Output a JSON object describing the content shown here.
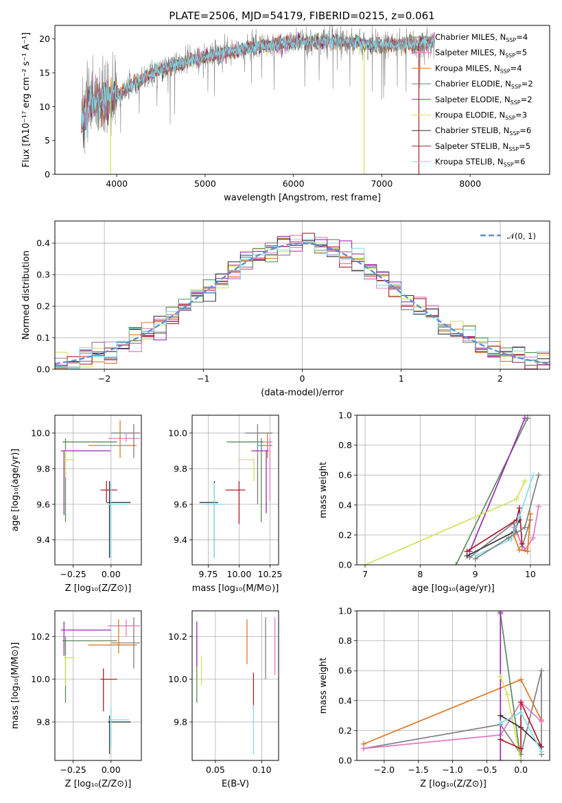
{
  "title": "PLATE=2506, MJD=54179, FIBERID=0215, z=0.061",
  "models": [
    {
      "name": "Chabrier MILES",
      "nssp": "4",
      "color": "#7f7f7f"
    },
    {
      "name": "Salpeter MILES",
      "nssp": "5",
      "color": "#e377c2"
    },
    {
      "name": "Kroupa MILES",
      "nssp": "4",
      "color": "#dd7722"
    },
    {
      "name": "Chabrier ELODIE",
      "nssp": "2",
      "color": "#5a8a5a"
    },
    {
      "name": "Salpeter ELODIE",
      "nssp": "2",
      "color": "#9b27b0"
    },
    {
      "name": "Kroupa ELODIE",
      "nssp": "3",
      "color": "#d4e157"
    },
    {
      "name": "Chabrier STELIB",
      "nssp": "6",
      "color": "#333333"
    },
    {
      "name": "Salpeter STELIB",
      "nssp": "5",
      "color": "#b2182b"
    },
    {
      "name": "Kroupa STELIB",
      "nssp": "6",
      "color": "#80deea"
    }
  ],
  "chart_data": [
    {
      "id": "spectrum",
      "type": "line",
      "xlabel": "wavelength [Angstrom, rest frame]",
      "ylabel": "Flux [fλ10⁻¹⁷ erg cm⁻² s⁻¹ A⁻¹]",
      "xlim": [
        3300,
        8900
      ],
      "ylim": [
        0,
        22
      ],
      "xticks": [
        4000,
        5000,
        6000,
        7000,
        8000
      ],
      "yticks": [
        0,
        5,
        10,
        15,
        20
      ],
      "legend_loc": "right",
      "continuum": [
        [
          3600,
          8
        ],
        [
          3700,
          10.5
        ],
        [
          3850,
          11
        ],
        [
          4000,
          11.5
        ],
        [
          4100,
          12.5
        ],
        [
          4200,
          13.5
        ],
        [
          4350,
          14.5
        ],
        [
          4500,
          15.5
        ],
        [
          4700,
          16.3
        ],
        [
          4900,
          17
        ],
        [
          5100,
          17.6
        ],
        [
          5300,
          18.2
        ],
        [
          5500,
          18.7
        ],
        [
          5700,
          19.1
        ],
        [
          5900,
          19.3
        ],
        [
          6100,
          19.5
        ],
        [
          6300,
          19.6
        ],
        [
          6500,
          19.6
        ],
        [
          6700,
          19.4
        ],
        [
          6900,
          19.2
        ],
        [
          7100,
          19.1
        ],
        [
          7300,
          19.2
        ],
        [
          7500,
          19.5
        ],
        [
          7600,
          19.7
        ]
      ],
      "dips": [
        {
          "x": 3930,
          "y": 0
        },
        {
          "x": 6800,
          "y": 0
        },
        {
          "x": 7420,
          "y": 0
        }
      ]
    },
    {
      "id": "residuals",
      "type": "step",
      "xlabel": "(data-model)/error",
      "ylabel": "Normed distribution",
      "xlim": [
        -2.5,
        2.5
      ],
      "ylim": [
        0,
        0.47
      ],
      "xticks": [
        -2,
        -1,
        0,
        1,
        2
      ],
      "yticks": [
        0.0,
        0.1,
        0.2,
        0.3,
        0.4
      ],
      "reference_label": "𝒩(0, 1)",
      "bin_width": 0.125
    },
    {
      "id": "age-vs-Z",
      "type": "errorbar",
      "xlabel": "Z [log₁₀(Z/Z⊙)]",
      "ylabel": "age  [log₁₀(age/yr)]",
      "xlim": [
        -0.37,
        0.2
      ],
      "ylim": [
        9.26,
        10.1
      ],
      "xticks": [
        -0.25,
        0.0
      ],
      "yticks": [
        9.4,
        9.6,
        9.8,
        10.0
      ],
      "points": [
        {
          "model": 0,
          "x": -0.01,
          "y": 9.61,
          "xlo": -0.03,
          "xhi": 0.01,
          "ylo": 9.3,
          "yhi": 9.73
        },
        {
          "model": 1,
          "x": 0.1,
          "y": 9.97,
          "xlo": -0.02,
          "xhi": 0.19,
          "ylo": 9.95,
          "yhi": 10.0
        },
        {
          "model": 2,
          "x": 0.06,
          "y": 9.93,
          "xlo": -0.15,
          "xhi": 0.17,
          "ylo": 9.86,
          "yhi": 10.07
        },
        {
          "model": 3,
          "x": -0.3,
          "y": 9.95,
          "xlo": -0.32,
          "xhi": 0.04,
          "ylo": 9.5,
          "yhi": 9.97
        },
        {
          "model": 4,
          "x": -0.31,
          "y": 9.9,
          "xlo": -0.33,
          "xhi": 0.0,
          "ylo": 9.54,
          "yhi": 9.9
        },
        {
          "model": 5,
          "x": -0.3,
          "y": 9.85,
          "xlo": -0.31,
          "xhi": -0.24,
          "ylo": 9.75,
          "yhi": 9.9
        },
        {
          "model": 6,
          "x": -0.01,
          "y": 9.61,
          "xlo": -0.02,
          "xhi": 0.13,
          "ylo": 9.3,
          "yhi": 9.73
        },
        {
          "model": 7,
          "x": -0.03,
          "y": 9.68,
          "xlo": -0.07,
          "xhi": 0.04,
          "ylo": 9.61,
          "yhi": 9.73
        },
        {
          "model": 8,
          "x": 0.0,
          "y": 9.6,
          "xlo": -0.02,
          "xhi": 0.12,
          "ylo": 9.3,
          "yhi": 9.72
        },
        {
          "model": 0,
          "x": 0.15,
          "y": 10.0,
          "xlo": 0.0,
          "xhi": 0.19,
          "ylo": 9.86,
          "yhi": 10.05
        }
      ]
    },
    {
      "id": "age-vs-mass",
      "type": "errorbar",
      "xlabel": "mass [log₁₀(M/M⊙)]",
      "ylabel": "",
      "xlim": [
        9.62,
        10.32
      ],
      "ylim": [
        9.26,
        10.1
      ],
      "xticks": [
        9.75,
        10.0,
        10.25
      ],
      "yticks": [
        9.4,
        9.6,
        9.8,
        10.0
      ],
      "points": [
        {
          "model": 0,
          "x": 10.15,
          "y": 10.0,
          "xlo": 10.05,
          "xhi": 10.27,
          "ylo": 9.6,
          "yhi": 10.05
        },
        {
          "model": 1,
          "x": 10.25,
          "y": 9.95,
          "xlo": 10.2,
          "xhi": 10.27,
          "ylo": 9.62,
          "yhi": 9.97
        },
        {
          "model": 2,
          "x": 10.23,
          "y": 9.93,
          "xlo": 10.15,
          "xhi": 10.27,
          "ylo": 9.86,
          "yhi": 10.0
        },
        {
          "model": 3,
          "x": 10.18,
          "y": 9.95,
          "xlo": 9.9,
          "xhi": 10.2,
          "ylo": 9.5,
          "yhi": 9.97
        },
        {
          "model": 4,
          "x": 10.22,
          "y": 9.9,
          "xlo": 10.1,
          "xhi": 10.24,
          "ylo": 9.55,
          "yhi": 9.9
        },
        {
          "model": 5,
          "x": 10.12,
          "y": 9.85,
          "xlo": 10.0,
          "xhi": 10.12,
          "ylo": 9.73,
          "yhi": 9.86
        },
        {
          "model": 6,
          "x": 9.8,
          "y": 9.61,
          "xlo": 9.68,
          "xhi": 9.83,
          "ylo": 9.3,
          "yhi": 9.73
        },
        {
          "model": 7,
          "x": 10.0,
          "y": 9.68,
          "xlo": 9.89,
          "xhi": 10.05,
          "ylo": 9.49,
          "yhi": 9.73
        },
        {
          "model": 8,
          "x": 9.8,
          "y": 9.6,
          "xlo": 9.7,
          "xhi": 9.87,
          "ylo": 9.3,
          "yhi": 9.72
        }
      ]
    },
    {
      "id": "weight-vs-age",
      "type": "line",
      "xlabel": "age  [log₁₀(age/yr)]",
      "ylabel": "mass weight",
      "xlim": [
        6.85,
        10.35
      ],
      "ylim": [
        0,
        1.0
      ],
      "xticks": [
        7,
        8,
        9,
        10
      ],
      "yticks": [
        0.0,
        0.2,
        0.4,
        0.6,
        0.8,
        1.0
      ],
      "series": [
        {
          "model": 0,
          "points": [
            [
              8.9,
              0.05
            ],
            [
              9.7,
              0.28
            ],
            [
              9.85,
              0.12
            ],
            [
              10.0,
              0.3
            ]
          ]
        },
        {
          "model": 1,
          "points": [
            [
              9.7,
              0.25
            ],
            [
              9.9,
              0.1
            ],
            [
              10.05,
              0.18
            ],
            [
              10.15,
              0.39
            ]
          ]
        },
        {
          "model": 2,
          "points": [
            [
              9.7,
              0.2
            ],
            [
              9.8,
              0.1
            ],
            [
              9.95,
              0.09
            ],
            [
              10.0,
              0.34
            ]
          ]
        },
        {
          "model": 3,
          "points": [
            [
              8.65,
              0.0
            ],
            [
              9.95,
              0.98
            ]
          ]
        },
        {
          "model": 4,
          "points": [
            [
              8.9,
              0.09
            ],
            [
              9.9,
              0.98
            ]
          ]
        },
        {
          "model": 5,
          "points": [
            [
              7.0,
              0.0
            ],
            [
              9.75,
              0.44
            ],
            [
              9.9,
              0.56
            ]
          ]
        },
        {
          "model": 6,
          "points": [
            [
              8.85,
              0.06
            ],
            [
              9.7,
              0.22
            ],
            [
              9.8,
              0.3
            ]
          ]
        },
        {
          "model": 7,
          "points": [
            [
              8.85,
              0.09
            ],
            [
              9.75,
              0.3
            ],
            [
              9.8,
              0.38
            ],
            [
              9.85,
              0.14
            ]
          ]
        },
        {
          "model": 8,
          "points": [
            [
              9.0,
              0.06
            ],
            [
              9.65,
              0.17
            ],
            [
              9.8,
              0.32
            ],
            [
              10.05,
              0.6
            ]
          ]
        },
        {
          "model": 0,
          "points": [
            [
              9.0,
              0.04
            ],
            [
              9.6,
              0.18
            ],
            [
              9.9,
              0.25
            ],
            [
              10.15,
              0.6
            ]
          ]
        }
      ]
    },
    {
      "id": "mass-vs-Z",
      "type": "errorbar",
      "xlabel": "Z [log₁₀(Z/Z⊙)]",
      "ylabel": "mass [log₁₀(M/M⊙)]",
      "xlim": [
        -0.37,
        0.2
      ],
      "ylim": [
        9.62,
        10.32
      ],
      "xticks": [
        -0.25,
        0.0
      ],
      "yticks": [
        9.8,
        10.0,
        10.2
      ],
      "points": [
        {
          "model": 0,
          "x": 0.15,
          "y": 10.17,
          "xlo": 0.0,
          "xhi": 0.19,
          "ylo": 10.05,
          "yhi": 10.29
        },
        {
          "model": 1,
          "x": 0.1,
          "y": 10.25,
          "xlo": -0.02,
          "xhi": 0.19,
          "ylo": 10.2,
          "yhi": 10.28
        },
        {
          "model": 2,
          "x": 0.05,
          "y": 10.16,
          "xlo": -0.15,
          "xhi": 0.17,
          "ylo": 10.12,
          "yhi": 10.28
        },
        {
          "model": 3,
          "x": -0.3,
          "y": 10.18,
          "xlo": -0.32,
          "xhi": 0.04,
          "ylo": 9.89,
          "yhi": 10.2
        },
        {
          "model": 4,
          "x": -0.31,
          "y": 10.23,
          "xlo": -0.33,
          "xhi": 0.0,
          "ylo": 10.11,
          "yhi": 10.27
        },
        {
          "model": 5,
          "x": -0.3,
          "y": 10.1,
          "xlo": -0.31,
          "xhi": -0.24,
          "ylo": 9.97,
          "yhi": 10.11
        },
        {
          "model": 6,
          "x": -0.01,
          "y": 9.8,
          "xlo": -0.02,
          "xhi": 0.13,
          "ylo": 9.65,
          "yhi": 9.83
        },
        {
          "model": 7,
          "x": -0.05,
          "y": 10.0,
          "xlo": -0.07,
          "xhi": 0.04,
          "ylo": 9.85,
          "yhi": 10.05
        },
        {
          "model": 8,
          "x": 0.0,
          "y": 9.81,
          "xlo": -0.02,
          "xhi": 0.12,
          "ylo": 9.68,
          "yhi": 9.87
        }
      ]
    },
    {
      "id": "mass-vs-ebv",
      "type": "errorbar",
      "xlabel": "E(B-V)",
      "ylabel": "",
      "xlim": [
        0.025,
        0.118
      ],
      "ylim": [
        9.62,
        10.32
      ],
      "xticks": [
        0.05,
        0.1
      ],
      "yticks": [
        9.8,
        10.0,
        10.2
      ],
      "points": [
        {
          "model": 3,
          "x": 0.03,
          "y": 10.1,
          "xlo": 0.03,
          "xhi": 0.03,
          "ylo": 9.89,
          "yhi": 10.2
        },
        {
          "model": 4,
          "x": 0.03,
          "y": 10.2,
          "xlo": 0.03,
          "xhi": 0.03,
          "ylo": 10.06,
          "yhi": 10.27
        },
        {
          "model": 5,
          "x": 0.035,
          "y": 10.05,
          "xlo": 0.035,
          "xhi": 0.035,
          "ylo": 9.97,
          "yhi": 10.11
        },
        {
          "model": 2,
          "x": 0.084,
          "y": 10.17,
          "xlo": 0.084,
          "xhi": 0.084,
          "ylo": 10.07,
          "yhi": 10.28
        },
        {
          "model": 7,
          "x": 0.091,
          "y": 9.95,
          "xlo": 0.091,
          "xhi": 0.091,
          "ylo": 9.86,
          "yhi": 10.03
        },
        {
          "model": 8,
          "x": 0.091,
          "y": 9.78,
          "xlo": 0.091,
          "xhi": 0.091,
          "ylo": 9.65,
          "yhi": 9.88
        },
        {
          "model": 0,
          "x": 0.104,
          "y": 10.15,
          "xlo": 0.104,
          "xhi": 0.104,
          "ylo": 10.0,
          "yhi": 10.29
        },
        {
          "model": 1,
          "x": 0.114,
          "y": 10.15,
          "xlo": 0.114,
          "xhi": 0.114,
          "ylo": 10.02,
          "yhi": 10.29
        }
      ]
    },
    {
      "id": "weight-vs-Z",
      "type": "line",
      "xlabel": "Z [log₁₀(Z/Z⊙)]",
      "ylabel": "mass weight",
      "xlim": [
        -2.4,
        0.42
      ],
      "ylim": [
        0,
        1.0
      ],
      "xticks": [
        -2.0,
        -1.5,
        -1.0,
        -0.5,
        0.0
      ],
      "yticks": [
        0.0,
        0.2,
        0.4,
        0.6,
        0.8,
        1.0
      ],
      "series": [
        {
          "model": 2,
          "points": [
            [
              -2.3,
              0.11
            ],
            [
              0.0,
              0.54
            ],
            [
              0.3,
              0.27
            ]
          ]
        },
        {
          "model": 0,
          "points": [
            [
              -2.3,
              0.08
            ],
            [
              -0.3,
              0.24
            ],
            [
              0.0,
              0.04
            ],
            [
              0.3,
              0.6
            ],
            [
              0.3,
              0.04
            ]
          ]
        },
        {
          "model": 1,
          "points": [
            [
              -2.3,
              0.08
            ],
            [
              -0.3,
              0.17
            ],
            [
              0.0,
              0.39
            ],
            [
              0.3,
              0.26
            ]
          ]
        },
        {
          "model": 3,
          "points": [
            [
              -0.3,
              0.98
            ],
            [
              0.0,
              0.0
            ]
          ]
        },
        {
          "model": 4,
          "points": [
            [
              -0.3,
              0.99
            ],
            [
              -0.3,
              0.0
            ]
          ]
        },
        {
          "model": 5,
          "points": [
            [
              -0.3,
              0.56
            ],
            [
              -0.2,
              0.44
            ],
            [
              0.0,
              0.0
            ]
          ]
        },
        {
          "model": 6,
          "points": [
            [
              -0.3,
              0.3
            ],
            [
              0.0,
              0.22
            ],
            [
              0.3,
              0.09
            ]
          ]
        },
        {
          "model": 7,
          "points": [
            [
              -0.3,
              0.14
            ],
            [
              0.0,
              0.08
            ],
            [
              0.0,
              0.39
            ],
            [
              0.3,
              0.09
            ]
          ]
        },
        {
          "model": 8,
          "points": [
            [
              -0.3,
              0.25
            ],
            [
              0.0,
              0.32
            ],
            [
              0.3,
              0.06
            ]
          ]
        }
      ]
    }
  ]
}
